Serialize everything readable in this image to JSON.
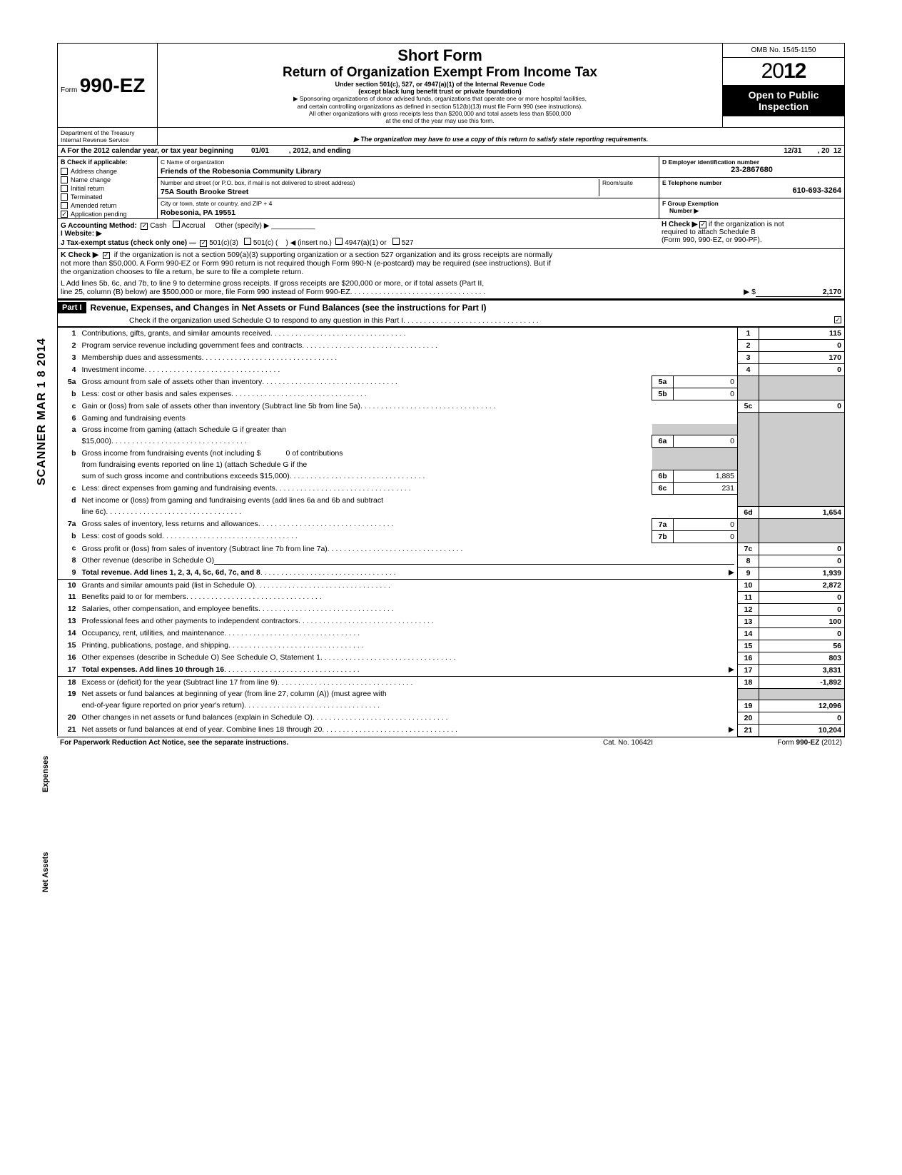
{
  "header": {
    "form_prefix": "Form",
    "form_number": "990-EZ",
    "short_form": "Short Form",
    "title": "Return of Organization Exempt From Income Tax",
    "subtitle1": "Under section 501(c), 527, or 4947(a)(1) of the Internal Revenue Code",
    "subtitle2": "(except black lung benefit trust or private foundation)",
    "sponsor_line1": "▶ Sponsoring organizations of donor advised funds, organizations that operate one or more hospital facilities,",
    "sponsor_line2": "and certain controlling organizations as defined in section 512(b)(13) must file Form 990 (see instructions).",
    "sponsor_line3": "All other organizations with gross receipts less than $200,000 and total assets less than $500,000",
    "sponsor_line4": "at the end of the year may use this form.",
    "omb": "OMB No. 1545-1150",
    "year_prefix": "20",
    "year_bold": "12",
    "open_line1": "Open to Public",
    "open_line2": "Inspection",
    "dept1": "Department of the Treasury",
    "dept2": "Internal Revenue Service",
    "dept_note": "▶ The organization may have to use a copy of this return to satisfy state reporting requirements."
  },
  "lineA": {
    "text": "A For the 2012 calendar year, or tax year beginning",
    "begin": "01/01",
    "mid": ", 2012, and ending",
    "end": "12/31",
    "end2": ", 20",
    "end_year": "12"
  },
  "lineB": {
    "header": "B Check if applicable:",
    "items": [
      {
        "label": "Address change",
        "checked": false
      },
      {
        "label": "Name change",
        "checked": false
      },
      {
        "label": "Initial return",
        "checked": false
      },
      {
        "label": "Terminated",
        "checked": false
      },
      {
        "label": "Amended return",
        "checked": false
      },
      {
        "label": "Application pending",
        "checked": true
      }
    ]
  },
  "lineC": {
    "name_label": "C  Name of organization",
    "name": "Friends of the Robesonia Community Library",
    "street_label": "Number and street (or P.O. box, if mail is not delivered to street address)",
    "room_label": "Room/suite",
    "street": "75A South Brooke Street",
    "city_label": "City or town, state or country, and ZIP + 4",
    "city": "Robesonia, PA 19551"
  },
  "lineD": {
    "label": "D Employer identification number",
    "value": "23-2867680"
  },
  "lineE": {
    "label": "E Telephone number",
    "value": "610-693-3264"
  },
  "lineF": {
    "label1": "F Group Exemption",
    "label2": "Number ▶"
  },
  "lineG": {
    "label": "G Accounting Method:",
    "cash": "Cash",
    "accrual": "Accrual",
    "other": "Other (specify) ▶"
  },
  "lineH": {
    "text1": "H Check ▶",
    "text2": "if the organization is not",
    "text3": "required to attach Schedule B",
    "text4": "(Form 990, 990-EZ, or 990-PF)."
  },
  "lineI": {
    "label": "I  Website: ▶"
  },
  "lineJ": {
    "label": "J Tax-exempt status (check only one) —",
    "opt1": "501(c)(3)",
    "opt2": "501(c) (",
    "opt2b": ")  ◀ (insert no.)",
    "opt3": "4947(a)(1) or",
    "opt4": "527"
  },
  "lineK": {
    "label": "K Check ▶",
    "text1": "if the organization is not a section 509(a)(3) supporting organization or a section 527 organization and its gross receipts are normally",
    "text2": "not more than $50,000. A Form 990-EZ or Form 990 return is not required though Form 990-N (e-postcard) may be required (see instructions). But if",
    "text3": "the organization chooses to file a return, be sure to file a complete return."
  },
  "lineL": {
    "text1": "L Add lines 5b, 6c, and 7b, to line 9 to determine gross receipts. If gross receipts are $200,000 or more, or if total assets (Part II,",
    "text2": "line 25, column (B) below) are $500,000 or more, file Form 990 instead of Form 990-EZ",
    "arrow": "▶ $",
    "value": "2,170"
  },
  "partI": {
    "label": "Part I",
    "title": "Revenue, Expenses, and Changes in Net Assets or Fund Balances (see the instructions for Part I)",
    "check_line": "Check if the organization used Schedule O to respond to any question in this Part I"
  },
  "side": {
    "scanned": "SCANNER MAR 1 8 2014",
    "expenses": "Expenses",
    "net_assets": "Net Assets"
  },
  "revenue_lines": [
    {
      "n": "1",
      "desc": "Contributions, gifts, grants, and similar amounts received",
      "ln": "1",
      "val": "115"
    },
    {
      "n": "2",
      "desc": "Program service revenue including government fees and contracts",
      "ln": "2",
      "val": "0"
    },
    {
      "n": "3",
      "desc": "Membership dues and assessments",
      "ln": "3",
      "val": "170"
    },
    {
      "n": "4",
      "desc": "Investment income",
      "ln": "4",
      "val": "0"
    }
  ],
  "line5": {
    "a_desc": "Gross amount from sale of assets other than inventory",
    "a_ln": "5a",
    "a_val": "0",
    "b_desc": "Less: cost or other basis and sales expenses",
    "b_ln": "5b",
    "b_val": "0",
    "c_desc": "Gain or (loss) from sale of assets other than inventory (Subtract line 5b from line 5a)",
    "c_ln": "5c",
    "c_val": "0"
  },
  "line6": {
    "hdr": "Gaming and fundraising events",
    "a1": "Gross income from gaming (attach Schedule G if greater than",
    "a2": "$15,000)",
    "a_ln": "6a",
    "a_val": "0",
    "b1": "Gross income from fundraising events (not including  $",
    "b1b": "0 of contributions",
    "b2": "from fundraising events reported on line 1) (attach Schedule G if the",
    "b3": "sum of such gross income and contributions exceeds $15,000)",
    "b_ln": "6b",
    "b_val": "1,885",
    "c": "Less: direct expenses from gaming and fundraising events",
    "c_ln": "6c",
    "c_val": "231",
    "d1": "Net income or (loss) from gaming and fundraising events (add lines 6a and 6b and subtract",
    "d2": "line 6c)",
    "d_ln": "6d",
    "d_val": "1,654"
  },
  "line7": {
    "a": "Gross sales of inventory, less returns and allowances",
    "a_ln": "7a",
    "a_val": "0",
    "b": "Less: cost of goods sold",
    "b_ln": "7b",
    "b_val": "0",
    "c": "Gross profit or (loss) from sales of inventory (Subtract line 7b from line 7a)",
    "c_ln": "7c",
    "c_val": "0"
  },
  "line8": {
    "desc": "Other revenue (describe in Schedule O)",
    "ln": "8",
    "val": "0"
  },
  "line9": {
    "desc": "Total revenue. Add lines 1, 2, 3, 4, 5c, 6d, 7c, and 8",
    "ln": "9",
    "val": "1,939"
  },
  "expense_lines": [
    {
      "n": "10",
      "desc": "Grants and similar amounts paid (list in Schedule O)",
      "ln": "10",
      "val": "2,872"
    },
    {
      "n": "11",
      "desc": "Benefits paid to or for members",
      "ln": "11",
      "val": "0"
    },
    {
      "n": "12",
      "desc": "Salaries, other compensation, and employee benefits",
      "ln": "12",
      "val": "0"
    },
    {
      "n": "13",
      "desc": "Professional fees and other payments to independent contractors",
      "ln": "13",
      "val": "100"
    },
    {
      "n": "14",
      "desc": "Occupancy, rent, utilities, and maintenance",
      "ln": "14",
      "val": "0"
    },
    {
      "n": "15",
      "desc": "Printing, publications, postage, and shipping",
      "ln": "15",
      "val": "56"
    },
    {
      "n": "16",
      "desc": "Other expenses (describe in Schedule O)  See Schedule O, Statement 1",
      "ln": "16",
      "val": "803"
    },
    {
      "n": "17",
      "desc": "Total expenses. Add lines 10 through 16",
      "ln": "17",
      "val": "3,831"
    }
  ],
  "netassets_lines": [
    {
      "n": "18",
      "desc": "Excess or (deficit) for the year (Subtract line 17 from line 9)",
      "ln": "18",
      "val": "-1,892"
    },
    {
      "n": "19",
      "desc": "Net assets or fund balances at beginning of year (from line 27, column (A)) (must agree with",
      "desc2": "end-of-year figure reported on prior year's return)",
      "ln": "19",
      "val": "12,096"
    },
    {
      "n": "20",
      "desc": "Other changes in net assets or fund balances (explain in Schedule O)",
      "ln": "20",
      "val": "0"
    },
    {
      "n": "21",
      "desc": "Net assets or fund balances at end of year. Combine lines 18 through 20",
      "ln": "21",
      "val": "10,204"
    }
  ],
  "footer": {
    "left": "For Paperwork Reduction Act Notice, see the separate instructions.",
    "mid": "Cat. No. 10642I",
    "right": "Form 990-EZ (2012)"
  }
}
